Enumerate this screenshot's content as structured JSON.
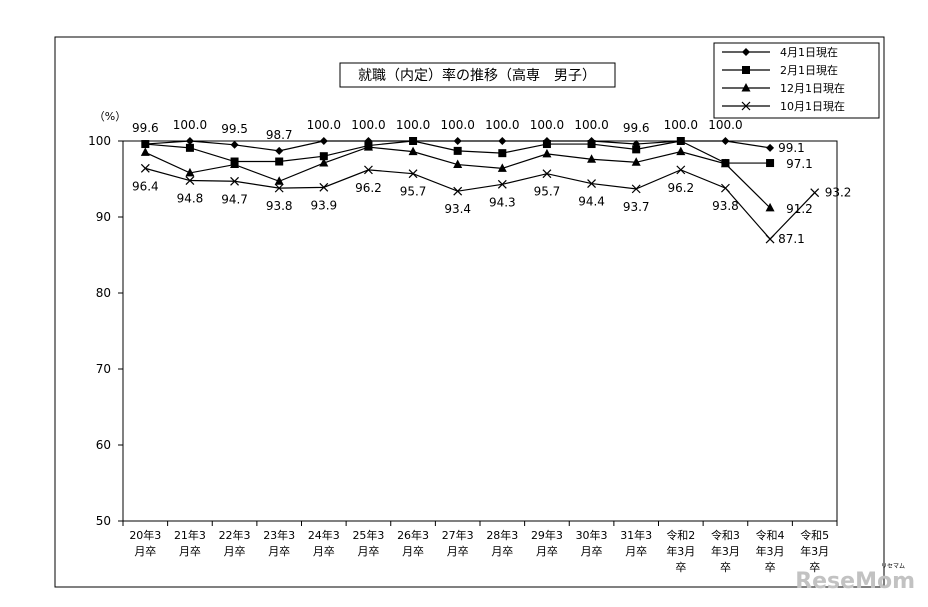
{
  "chart_data": {
    "type": "line",
    "title": "就職（内定）率の推移（高専　男子）",
    "ylabel": "（%）",
    "ylim": [
      50,
      100
    ],
    "yticks": [
      "100",
      "90",
      "80",
      "70",
      "60",
      "50"
    ],
    "categories": [
      [
        "20年3",
        "月卒"
      ],
      [
        "21年3",
        "月卒"
      ],
      [
        "22年3",
        "月卒"
      ],
      [
        "23年3",
        "月卒"
      ],
      [
        "24年3",
        "月卒"
      ],
      [
        "25年3",
        "月卒"
      ],
      [
        "26年3",
        "月卒"
      ],
      [
        "27年3",
        "月卒"
      ],
      [
        "28年3",
        "月卒"
      ],
      [
        "29年3",
        "月卒"
      ],
      [
        "30年3",
        "月卒"
      ],
      [
        "31年3",
        "月卒"
      ],
      [
        "令和2",
        "年3月",
        "卒"
      ],
      [
        "令和3",
        "年3月",
        "卒"
      ],
      [
        "令和4",
        "年3月",
        "卒"
      ],
      [
        "令和5",
        "年3月",
        "卒"
      ]
    ],
    "grid": false,
    "legend_position": "top-right",
    "series": [
      {
        "name": "4月1日現在",
        "marker": "diamond",
        "values": [
          99.6,
          100.0,
          99.5,
          98.7,
          100.0,
          100.0,
          100.0,
          100.0,
          100.0,
          100.0,
          100.0,
          99.6,
          100.0,
          100.0,
          99.1,
          null
        ],
        "labels": [
          "99.6",
          "100.0",
          "99.5",
          "98.7",
          "100.0",
          "100.0",
          "100.0",
          "100.0",
          "100.0",
          "100.0",
          "100.0",
          "99.6",
          "100.0",
          "100.0",
          "99.1",
          ""
        ]
      },
      {
        "name": "2月1日現在",
        "marker": "square",
        "values": [
          99.6,
          99.1,
          97.3,
          97.3,
          98.0,
          99.4,
          100.0,
          98.7,
          98.4,
          99.6,
          99.6,
          98.9,
          100.0,
          97.1,
          97.1,
          null
        ],
        "labels": [
          "",
          "",
          "",
          "",
          "",
          "",
          "",
          "",
          "",
          "",
          "",
          "",
          "",
          "",
          "97.1",
          ""
        ]
      },
      {
        "name": "12月1日現在",
        "marker": "triangle",
        "values": [
          98.5,
          95.8,
          96.9,
          94.7,
          97.1,
          99.2,
          98.6,
          96.9,
          96.4,
          98.3,
          97.6,
          97.2,
          98.6,
          97.0,
          91.2,
          null
        ],
        "labels": [
          "",
          "",
          "",
          "",
          "",
          "",
          "",
          "",
          "",
          "",
          "",
          "",
          "",
          "",
          "91.2",
          ""
        ]
      },
      {
        "name": "10月1日現在",
        "marker": "x",
        "values": [
          96.4,
          94.8,
          94.7,
          93.8,
          93.9,
          96.2,
          95.7,
          93.4,
          94.3,
          95.7,
          94.4,
          93.7,
          96.2,
          93.8,
          87.1,
          93.2
        ],
        "labels": [
          "96.4",
          "94.8",
          "94.7",
          "93.8",
          "93.9",
          "96.2",
          "95.7",
          "93.4",
          "94.3",
          "95.7",
          "94.4",
          "93.7",
          "96.2",
          "93.8",
          "87.1",
          "93.2"
        ]
      }
    ]
  },
  "watermark": {
    "text": "ReseMom",
    "small": "リセマム"
  }
}
